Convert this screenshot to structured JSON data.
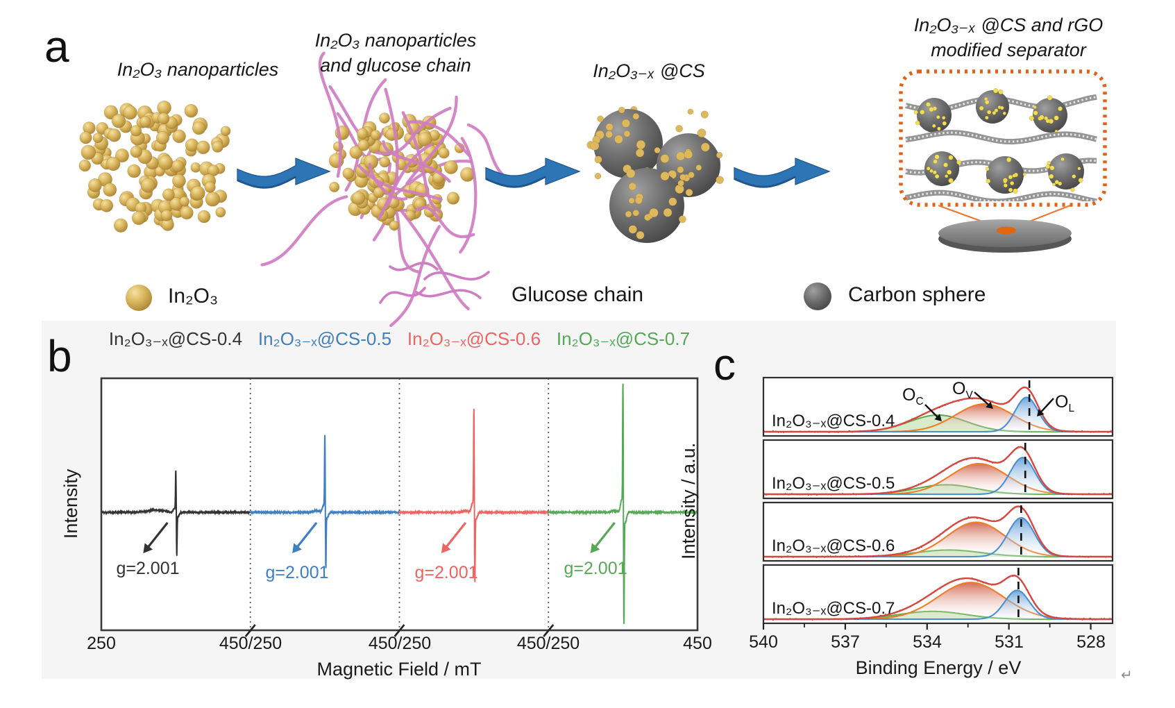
{
  "figure": {
    "panel_letters": {
      "a": "a",
      "b": "b",
      "c": "c"
    },
    "return_mark": "↵"
  },
  "panel_a": {
    "stage1_label": "In₂O₃ nanoparticles",
    "stage2_label_line1": "In₂O₃ nanoparticles",
    "stage2_label_line2": "and glucose chain",
    "stage3_label": "In₂O₃₋ₓ @CS",
    "stage4_label_line1": "In₂O₃₋ₓ @CS and rGO",
    "stage4_label_line2": "modified separator",
    "legend": {
      "in2o3": "In₂O₃",
      "glucose": "Glucose chain",
      "carbon": "Carbon sphere"
    },
    "colors": {
      "in2o3_sphere": "#d9b155",
      "glucose_chain": "#cf7dc2",
      "carbon_sphere": "#757575",
      "arrow": "#2e75b5",
      "highlight_box": "#e2611a"
    }
  },
  "chart_data": [
    {
      "id": "epr_panel_b",
      "type": "line",
      "xlabel": "Magnetic Field / mT",
      "ylabel": "Intensity",
      "x_segment_range_mT": [
        250,
        450
      ],
      "x_tick_labels": [
        "250",
        "450/250",
        "450/250",
        "450/250",
        "450"
      ],
      "grid": false,
      "series": [
        {
          "name": "In₂O₃₋ₓ@CS-0.4",
          "color": "#333333",
          "annotation": "g=2.001",
          "g_value": 2.001,
          "peak_mT": 350,
          "amp_up": 0.165,
          "amp_down": 0.17
        },
        {
          "name": "In₂O₃₋ₓ@CS-0.5",
          "color": "#3f7fc1",
          "annotation": "g=2.001",
          "g_value": 2.001,
          "peak_mT": 350,
          "amp_up": 0.3,
          "amp_down": 0.22
        },
        {
          "name": "In₂O₃₋ₓ@CS-0.6",
          "color": "#ee6461",
          "annotation": "g=2.001",
          "g_value": 2.001,
          "peak_mT": 350,
          "amp_up": 0.4,
          "amp_down": 0.275
        },
        {
          "name": "In₂O₃₋ₓ@CS-0.7",
          "color": "#55a956",
          "annotation": "g=2.001",
          "g_value": 2.001,
          "peak_mT": 350,
          "amp_up": 0.5,
          "amp_down": 0.44
        }
      ]
    },
    {
      "id": "xps_panel_c",
      "type": "area",
      "xlabel": "Binding Energy / eV",
      "ylabel": "Intensity / a.u.",
      "x_ticks": [
        540,
        537,
        534,
        531,
        528
      ],
      "x_range": [
        540,
        527.2
      ],
      "component_labels": [
        {
          "base": "O",
          "sub": "C"
        },
        {
          "base": "O",
          "sub": "V"
        },
        {
          "base": "O",
          "sub": "L"
        }
      ],
      "colors": {
        "envelope": "#d9453f",
        "data": "#1a1a1a",
        "OC": "#5fae4e",
        "OV": "#ef7d28",
        "OL": "#4a8fd0"
      },
      "panels": [
        {
          "name": "In₂O₃₋ₓ@CS-0.4",
          "dash_eV": 530.25,
          "components": [
            {
              "id": "OC",
              "center_eV": 533.6,
              "sigma_eV": 1.05,
              "amplitude": 0.3
            },
            {
              "id": "OV",
              "center_eV": 531.9,
              "sigma_eV": 1.05,
              "amplitude": 0.5
            },
            {
              "id": "OL",
              "center_eV": 530.35,
              "sigma_eV": 0.42,
              "amplitude": 0.62
            }
          ]
        },
        {
          "name": "In₂O₃₋ₓ@CS-0.5",
          "dash_eV": 530.4,
          "components": [
            {
              "id": "OC",
              "center_eV": 533.3,
              "sigma_eV": 1.1,
              "amplitude": 0.17
            },
            {
              "id": "OV",
              "center_eV": 532.1,
              "sigma_eV": 1.05,
              "amplitude": 0.55
            },
            {
              "id": "OL",
              "center_eV": 530.5,
              "sigma_eV": 0.45,
              "amplitude": 0.66
            }
          ]
        },
        {
          "name": "In₂O₃₋ₓ@CS-0.6",
          "dash_eV": 530.55,
          "components": [
            {
              "id": "OC",
              "center_eV": 533.2,
              "sigma_eV": 1.2,
              "amplitude": 0.12
            },
            {
              "id": "OV",
              "center_eV": 532.2,
              "sigma_eV": 1.05,
              "amplitude": 0.62
            },
            {
              "id": "OL",
              "center_eV": 530.55,
              "sigma_eV": 0.48,
              "amplitude": 0.7
            }
          ]
        },
        {
          "name": "In₂O₃₋ₓ@CS-0.7",
          "dash_eV": 530.65,
          "components": [
            {
              "id": "OC",
              "center_eV": 533.8,
              "sigma_eV": 1.2,
              "amplitude": 0.14
            },
            {
              "id": "OV",
              "center_eV": 532.4,
              "sigma_eV": 1.2,
              "amplitude": 0.66
            },
            {
              "id": "OL",
              "center_eV": 530.7,
              "sigma_eV": 0.45,
              "amplitude": 0.52
            }
          ]
        }
      ]
    }
  ]
}
